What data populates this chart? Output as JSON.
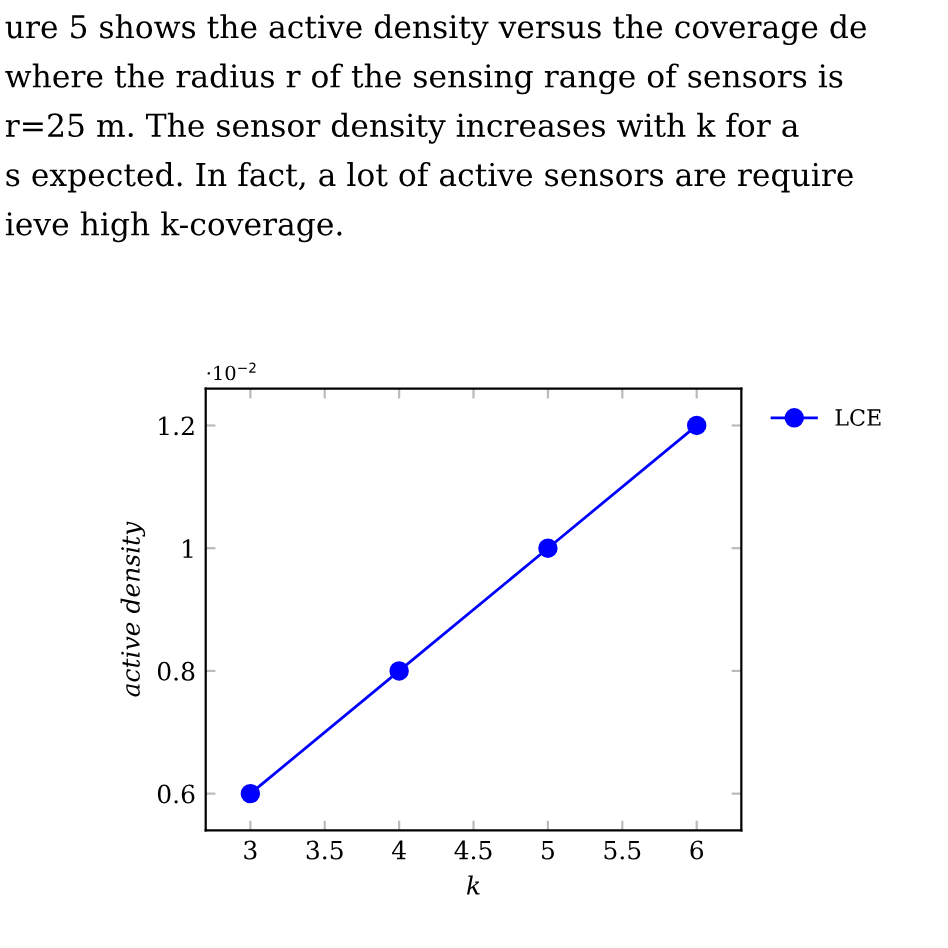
{
  "chart_data": {
    "type": "line",
    "xlabel": "k",
    "ylabel": "active density",
    "x": [
      3,
      4,
      5,
      6
    ],
    "series": [
      {
        "name": "LCE",
        "color": "#0000ff",
        "values": [
          0.6,
          0.8,
          1,
          1.2
        ]
      }
    ],
    "xlim": [
      2.7,
      6.3
    ],
    "xticks": [
      3,
      3.5,
      4,
      4.5,
      5,
      5.5,
      6
    ],
    "ylim": [
      0.54,
      1.26
    ],
    "yticks": [
      0.6,
      0.8,
      1,
      1.2
    ],
    "marker": "circle",
    "line_style": "solid",
    "legend": "top right",
    "grid": false,
    "annotations": [
      "ure 5 shows the active density versus the coverage de",
      "where the radius r of the sensing range of sensors is",
      "r=25 m. The sensor density increases with k for a",
      "s expected. In fact, a lot of active sensors are require",
      "ieve high k-coverage.",
      "·10$^{−2}$"
    ]
  }
}
